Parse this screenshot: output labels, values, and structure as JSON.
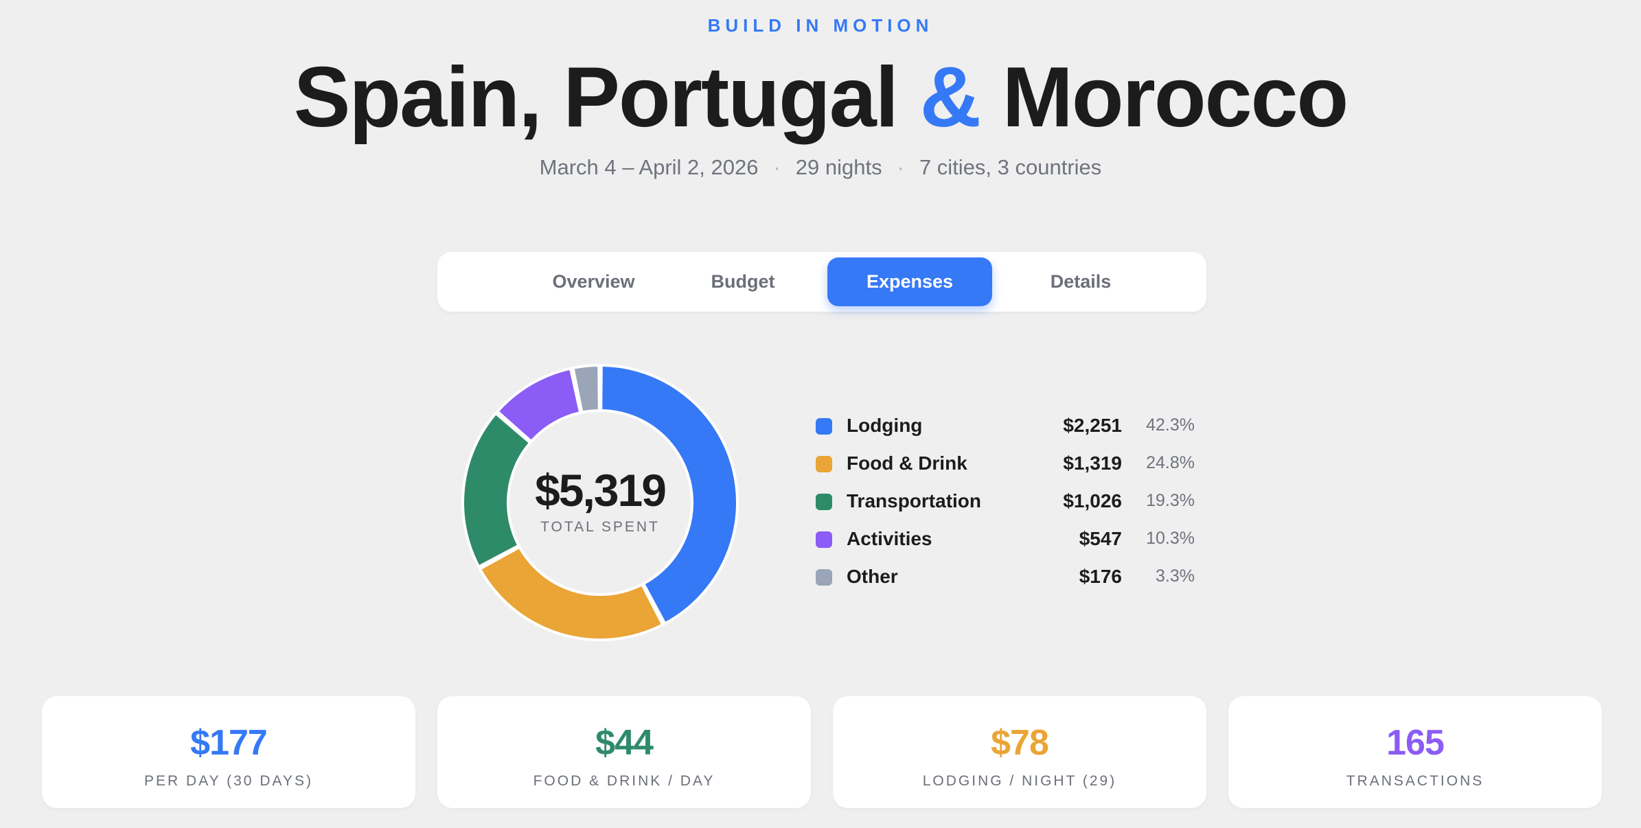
{
  "header": {
    "brand": "BUILD IN MOTION",
    "title_part1": "Spain, Portugal ",
    "title_amp": "&",
    "title_part2": " Morocco",
    "dates": "March 4 – April 2, 2026",
    "nights": "29 nights",
    "cities": "7 cities, 3 countries",
    "separator": "·"
  },
  "tabs": [
    {
      "label": "Overview",
      "active": false
    },
    {
      "label": "Budget",
      "active": false
    },
    {
      "label": "Expenses",
      "active": true
    },
    {
      "label": "Details",
      "active": false
    }
  ],
  "donut": {
    "total": "$5,319",
    "total_label": "TOTAL SPENT"
  },
  "chart_data": {
    "type": "pie",
    "title": "",
    "categories": [
      "Lodging",
      "Food & Drink",
      "Transportation",
      "Activities",
      "Other"
    ],
    "values": [
      2251,
      1319,
      1026,
      547,
      176
    ],
    "amount_labels": [
      "$2,251",
      "$1,319",
      "$1,026",
      "$547",
      "$176"
    ],
    "percent_labels": [
      "42.3%",
      "24.8%",
      "19.3%",
      "10.3%",
      "3.3%"
    ],
    "colors": [
      "#3579f6",
      "#eaa536",
      "#2e8b69",
      "#8b5cf6",
      "#9aa5b8"
    ],
    "legend_position": "right"
  },
  "stats": [
    {
      "value": "$177",
      "label": "PER DAY (30 DAYS)",
      "color": "#3579f6"
    },
    {
      "value": "$44",
      "label": "FOOD & DRINK / DAY",
      "color": "#2e8b69"
    },
    {
      "value": "$78",
      "label": "LODGING / NIGHT (29)",
      "color": "#eaa536"
    },
    {
      "value": "165",
      "label": "TRANSACTIONS",
      "color": "#8b5cf6"
    }
  ]
}
